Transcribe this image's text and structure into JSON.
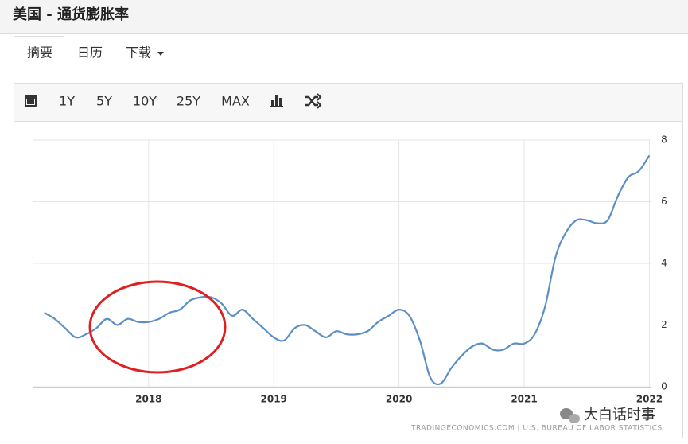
{
  "header": {
    "title": "美国 - 通货膨胀率"
  },
  "tabs": [
    "摘要",
    "日历",
    "下载"
  ],
  "toolbar": [
    "1Y",
    "5Y",
    "10Y",
    "25Y",
    "MAX"
  ],
  "chart_data": {
    "type": "line",
    "x": [
      2017.167,
      2017.25,
      2017.333,
      2017.417,
      2017.5,
      2017.583,
      2017.667,
      2017.75,
      2017.833,
      2017.917,
      2018,
      2018.083,
      2018.167,
      2018.25,
      2018.333,
      2018.417,
      2018.5,
      2018.583,
      2018.667,
      2018.75,
      2018.833,
      2018.917,
      2019,
      2019.083,
      2019.167,
      2019.25,
      2019.333,
      2019.417,
      2019.5,
      2019.583,
      2019.667,
      2019.75,
      2019.833,
      2019.917,
      2020,
      2020.083,
      2020.167,
      2020.25,
      2020.333,
      2020.417,
      2020.5,
      2020.583,
      2020.667,
      2020.75,
      2020.833,
      2020.917,
      2021,
      2021.083,
      2021.167,
      2021.25,
      2021.333,
      2021.417,
      2021.5,
      2021.583,
      2021.667,
      2021.75,
      2021.833,
      2021.917,
      2022
    ],
    "values": [
      2.4,
      2.2,
      1.9,
      1.6,
      1.7,
      1.9,
      2.2,
      2.0,
      2.2,
      2.1,
      2.1,
      2.2,
      2.4,
      2.5,
      2.8,
      2.9,
      2.9,
      2.7,
      2.3,
      2.5,
      2.2,
      1.9,
      1.6,
      1.5,
      1.9,
      2.0,
      1.8,
      1.6,
      1.8,
      1.7,
      1.7,
      1.8,
      2.1,
      2.3,
      2.5,
      2.3,
      1.5,
      0.3,
      0.1,
      0.6,
      1.0,
      1.3,
      1.4,
      1.2,
      1.2,
      1.4,
      1.4,
      1.7,
      2.6,
      4.2,
      5.0,
      5.4,
      5.4,
      5.3,
      5.4,
      6.2,
      6.8,
      7.0,
      7.5
    ],
    "color": "#5b8fc5",
    "xlim": [
      2017.08,
      2022.01
    ],
    "xticks": [
      2018,
      2019,
      2020,
      2021,
      2022
    ],
    "ylim": [
      0,
      8
    ],
    "yticks": [
      0,
      2,
      4,
      6,
      8
    ],
    "grid": true,
    "source": "TRADINGECONOMICS.COM  |  U.S. BUREAU OF LABOR STATISTICS"
  },
  "watermark": "大白话时事"
}
